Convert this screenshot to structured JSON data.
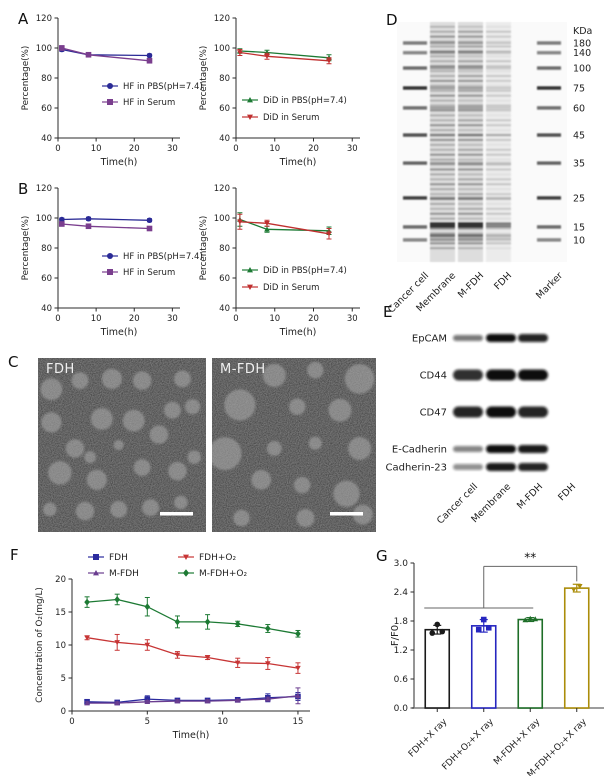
{
  "panels": {
    "a": {
      "label": "A"
    },
    "b": {
      "label": "B"
    },
    "c": {
      "label": "C",
      "images": [
        {
          "title": "FDH",
          "particles": [
            [
              8,
              18,
              6.5
            ],
            [
              25,
              13,
              5
            ],
            [
              44,
              12,
              6
            ],
            [
              62,
              13,
              5.5
            ],
            [
              86,
              12,
              5
            ],
            [
              8,
              37,
              6
            ],
            [
              38,
              35,
              6.5
            ],
            [
              57,
              36,
              6.5
            ],
            [
              80,
              30,
              5
            ],
            [
              92,
              28,
              4.5
            ],
            [
              22,
              52,
              5.5
            ],
            [
              48,
              50,
              3
            ],
            [
              72,
              44,
              5.5
            ],
            [
              31,
              57,
              3.5
            ],
            [
              13,
              66,
              7
            ],
            [
              35,
              70,
              6
            ],
            [
              62,
              63,
              5
            ],
            [
              83,
              65,
              5.5
            ],
            [
              93,
              57,
              4
            ],
            [
              28,
              88,
              5.5
            ],
            [
              48,
              87,
              5
            ],
            [
              67,
              86,
              5
            ],
            [
              85,
              83,
              4
            ],
            [
              7,
              87,
              4
            ]
          ]
        },
        {
          "title": "M-FDH",
          "particles": [
            [
              38,
              10,
              7
            ],
            [
              63,
              7,
              5
            ],
            [
              90,
              12,
              9
            ],
            [
              17,
              27,
              9.5
            ],
            [
              52,
              28,
              5
            ],
            [
              78,
              30,
              7
            ],
            [
              8,
              55,
              10
            ],
            [
              38,
              52,
              4.5
            ],
            [
              63,
              49,
              4
            ],
            [
              90,
              52,
              7
            ],
            [
              30,
              70,
              6
            ],
            [
              55,
              73,
              5
            ],
            [
              82,
              78,
              8
            ],
            [
              18,
              92,
              5
            ],
            [
              57,
              92,
              5.5
            ],
            [
              92,
              90,
              6
            ]
          ]
        }
      ]
    },
    "d": {
      "label": "D",
      "kda_header": "KDa",
      "kda_values": [
        "180",
        "140",
        "100",
        "75",
        "60",
        "45",
        "35",
        "25",
        "15",
        "10"
      ],
      "lanes": [
        "Cancer cell",
        "Membrane",
        "M-FDH",
        "FDH",
        "Marker"
      ]
    },
    "e": {
      "label": "E",
      "lanes": [
        "Cancer cell",
        "Membrane",
        "M-FDH",
        "FDH"
      ],
      "rows": [
        {
          "label": "EpCAM",
          "strengths": [
            0.55,
            1,
            0.9,
            0
          ]
        },
        {
          "label": "CD44",
          "strengths": [
            0.85,
            1,
            1,
            0
          ]
        },
        {
          "label": "CD47",
          "strengths": [
            0.9,
            1,
            0.9,
            0
          ]
        },
        {
          "label": "E-Cadherin",
          "strengths": [
            0.5,
            1,
            0.95,
            0
          ]
        },
        {
          "label": "Cadherin-23",
          "strengths": [
            0.45,
            0.95,
            0.9,
            0
          ]
        }
      ]
    },
    "f": {
      "label": "F"
    },
    "g": {
      "label": "G"
    }
  },
  "chart_data": [
    {
      "id": "a-left",
      "type": "line",
      "xlabel": "Time(h)",
      "ylabel": "Percentage(%)",
      "xlim": [
        0,
        32
      ],
      "ylim": [
        40,
        120
      ],
      "xticks": [
        0,
        10,
        20,
        30
      ],
      "yticks": [
        40,
        60,
        80,
        100,
        120
      ],
      "series": [
        {
          "name": "HF in PBS(pH=7.4)",
          "color": "#2a2a96",
          "marker": "circle",
          "x": [
            1,
            8,
            24
          ],
          "y": [
            99,
            95.5,
            95
          ],
          "err": [
            1.2,
            1,
            1
          ]
        },
        {
          "name": "HF in Serum",
          "color": "#7a3e8e",
          "marker": "square",
          "x": [
            1,
            8,
            24
          ],
          "y": [
            100,
            95.5,
            91.5
          ],
          "err": [
            1.5,
            1,
            1
          ]
        }
      ]
    },
    {
      "id": "a-right",
      "type": "line",
      "xlabel": "Time(h)",
      "ylabel": "Percentage(%)",
      "xlim": [
        0,
        32
      ],
      "ylim": [
        40,
        120
      ],
      "xticks": [
        0,
        10,
        20,
        30
      ],
      "yticks": [
        40,
        60,
        80,
        100,
        120
      ],
      "series": [
        {
          "name": "DiD in PBS(pH=7.4)",
          "color": "#1d7a34",
          "marker": "triangle",
          "x": [
            1,
            8,
            24
          ],
          "y": [
            98,
            97,
            93.5
          ],
          "err": [
            1.5,
            1.5,
            2
          ]
        },
        {
          "name": "DiD in Serum",
          "color": "#c03030",
          "marker": "triangle-down",
          "x": [
            1,
            8,
            24
          ],
          "y": [
            97,
            94.5,
            91.5
          ],
          "err": [
            2,
            2,
            2
          ]
        }
      ]
    },
    {
      "id": "b-left",
      "type": "line",
      "xlabel": "Time(h)",
      "ylabel": "Percentage(%)",
      "xlim": [
        0,
        32
      ],
      "ylim": [
        40,
        120
      ],
      "xticks": [
        0,
        10,
        20,
        30
      ],
      "yticks": [
        40,
        60,
        80,
        100,
        120
      ],
      "series": [
        {
          "name": "HF in PBS(pH=7.4)",
          "color": "#2a2a96",
          "marker": "circle",
          "x": [
            1,
            8,
            24
          ],
          "y": [
            99,
            99.5,
            98.5
          ],
          "err": [
            1,
            1,
            1
          ]
        },
        {
          "name": "HF in Serum",
          "color": "#7a3e8e",
          "marker": "square",
          "x": [
            1,
            8,
            24
          ],
          "y": [
            96,
            94.5,
            93
          ],
          "err": [
            1,
            1,
            1
          ]
        }
      ]
    },
    {
      "id": "b-right",
      "type": "line",
      "xlabel": "Time(h)",
      "ylabel": "Percentage(%)",
      "xlim": [
        0,
        32
      ],
      "ylim": [
        40,
        120
      ],
      "xticks": [
        0,
        10,
        20,
        30
      ],
      "yticks": [
        40,
        60,
        80,
        100,
        120
      ],
      "series": [
        {
          "name": "DiD in PBS(pH=7.4)",
          "color": "#1d7a34",
          "marker": "triangle",
          "x": [
            1,
            8,
            24
          ],
          "y": [
            99,
            92.5,
            91.5
          ],
          "err": [
            4.5,
            2,
            2.5
          ]
        },
        {
          "name": "DiD in Serum",
          "color": "#c03030",
          "marker": "triangle-down",
          "x": [
            1,
            8,
            24
          ],
          "y": [
            97.5,
            96.5,
            89.5
          ],
          "err": [
            5,
            2,
            3.5
          ]
        }
      ]
    },
    {
      "id": "f",
      "type": "line",
      "xlabel": "Time(h)",
      "ylabel": "Concentration of O₂(mg/L)",
      "xlim": [
        0,
        15.8
      ],
      "ylim": [
        0,
        20
      ],
      "xticks": [
        0,
        5,
        10,
        15
      ],
      "yticks": [
        0,
        5,
        10,
        15,
        20
      ],
      "series": [
        {
          "name": "FDH",
          "color": "#2b2b9e",
          "marker": "square",
          "x": [
            1,
            3,
            5,
            7,
            9,
            11,
            13,
            15
          ],
          "y": [
            1.4,
            1.3,
            1.8,
            1.6,
            1.6,
            1.7,
            2.0,
            2.2
          ],
          "err": [
            0.3,
            0.3,
            0.5,
            0.3,
            0.3,
            0.3,
            0.6,
            0.6
          ]
        },
        {
          "name": "M-FDH",
          "color": "#6a3d8f",
          "marker": "triangle",
          "x": [
            1,
            3,
            5,
            7,
            9,
            11,
            13,
            15
          ],
          "y": [
            1.2,
            1.2,
            1.4,
            1.5,
            1.5,
            1.6,
            1.8,
            2.3
          ],
          "err": [
            0.2,
            0.2,
            0.2,
            0.2,
            0.2,
            0.2,
            0.3,
            1.2
          ]
        },
        {
          "name": "FDH+O₂",
          "color": "#c73535",
          "marker": "triangle-down",
          "x": [
            1,
            3,
            5,
            7,
            9,
            11,
            13,
            15
          ],
          "y": [
            11.1,
            10.4,
            10.0,
            8.5,
            8.1,
            7.3,
            7.2,
            6.5
          ],
          "err": [
            0.3,
            1.2,
            0.8,
            0.5,
            0.3,
            0.7,
            0.9,
            0.8
          ]
        },
        {
          "name": "M-FDH+O₂",
          "color": "#1d7a34",
          "marker": "diamond",
          "x": [
            1,
            3,
            5,
            7,
            9,
            11,
            13,
            15
          ],
          "y": [
            16.5,
            16.9,
            15.8,
            13.5,
            13.5,
            13.2,
            12.5,
            11.7
          ],
          "err": [
            0.8,
            0.8,
            1.4,
            0.9,
            1.1,
            0.4,
            0.6,
            0.5
          ]
        }
      ]
    },
    {
      "id": "g",
      "type": "bar",
      "ylabel": "F/F0",
      "ylim": [
        0,
        3
      ],
      "yticks": [
        0,
        0.6,
        1.2,
        1.8,
        2.4,
        3.0
      ],
      "ytick_labels": [
        "0.0",
        "0.6",
        "1.2",
        "1.8",
        "2.4",
        "3.0"
      ],
      "categories": [
        "FDH+X ray",
        "FDH+O₂+X ray",
        "M-FDH+X ray",
        "M-FDH+O₂+X ray"
      ],
      "values": [
        1.62,
        1.7,
        1.83,
        2.48
      ],
      "errors": [
        0.09,
        0.13,
        0.04,
        0.08
      ],
      "colors": [
        "#1a1a1a",
        "#2626c0",
        "#1e6e28",
        "#ab8d0a"
      ],
      "markers": [
        "circle",
        "square",
        "triangle",
        "triangle-down"
      ],
      "points": [
        [
          1.55,
          1.58,
          1.73
        ],
        [
          1.62,
          1.66,
          1.83
        ],
        [
          1.82,
          1.84,
          1.85
        ],
        [
          2.45,
          2.52
        ]
      ],
      "significance": "**"
    }
  ]
}
